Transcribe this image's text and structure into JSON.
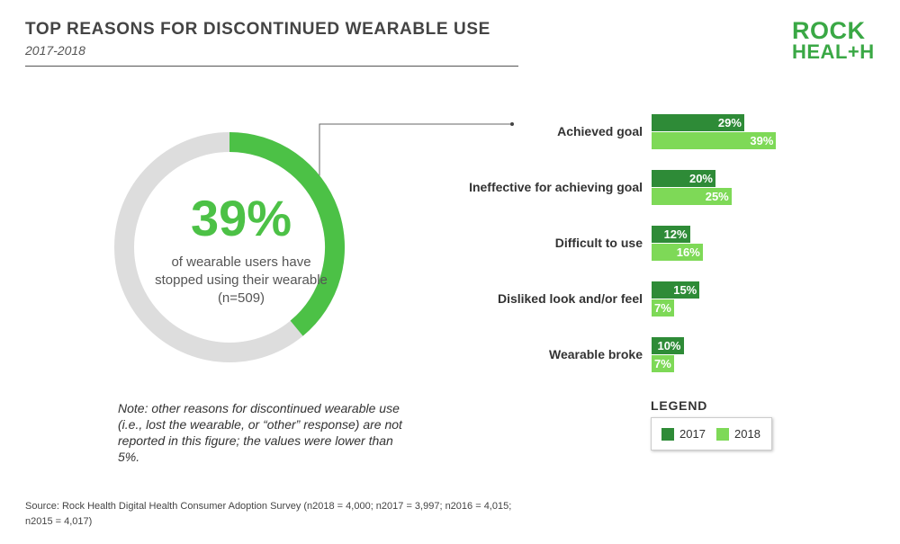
{
  "header": {
    "title": "TOP REASONS FOR DISCONTINUED WEARABLE USE",
    "subtitle": "2017-2018"
  },
  "logo": {
    "line1": "ROCK",
    "line2": "HEAL+H"
  },
  "highlight": {
    "value_label": "39%",
    "value": 39,
    "caption": "of wearable users have stopped using their wearable (n=509)"
  },
  "chart_data": {
    "type": "bar",
    "orientation": "horizontal",
    "categories": [
      "Achieved goal",
      "Ineffective for achieving goal",
      "Difficult to use",
      "Disliked look and/or feel",
      "Wearable broke"
    ],
    "series": [
      {
        "name": "2017",
        "values": [
          29,
          20,
          12,
          15,
          10
        ],
        "labels": [
          "29%",
          "20%",
          "12%",
          "15%",
          "10%"
        ],
        "color": "#2e8b37"
      },
      {
        "name": "2018",
        "values": [
          39,
          25,
          16,
          7,
          7
        ],
        "labels": [
          "39%",
          "25%",
          "16%",
          "7%",
          "7%"
        ],
        "color": "#7ed957"
      }
    ],
    "legend_title": "LEGEND",
    "legend_placement": "bottom-right",
    "grid": false
  },
  "note": "Note: other reasons for discontinued wearable use (i.e., lost the wearable, or “other” response) are not reported in this figure; the values were lower than 5%.",
  "source": "Source: Rock Health Digital Health Consumer Adoption Survey (n2018 = 4,000; n2017 = 3,997; n2016 = 4,015; n2015 = 4,017)",
  "colors": {
    "accent": "#4cc146",
    "donut_track": "#dddddd",
    "bar_2017": "#2e8b37",
    "bar_2018": "#7ed957"
  }
}
